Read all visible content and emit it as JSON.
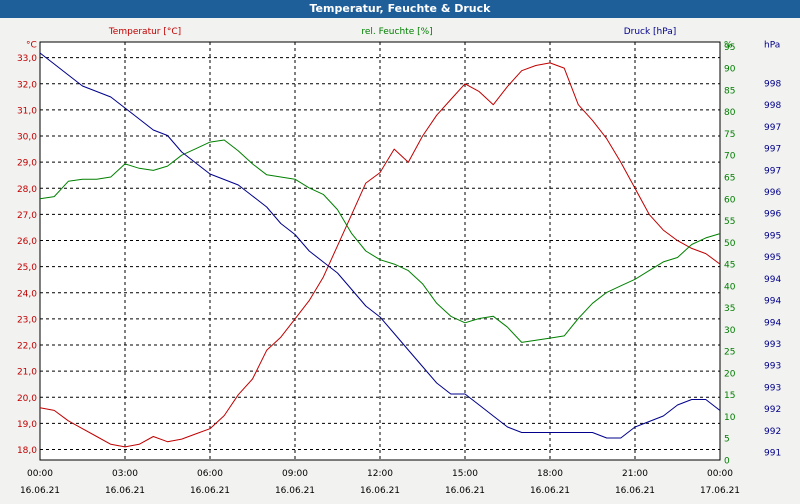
{
  "window": {
    "title": "Temperatur, Feuchte & Druck"
  },
  "chart_data": {
    "type": "line",
    "title": "Temperatur, Feuchte & Druck",
    "grid": true,
    "x": {
      "ticks": [
        "00:00",
        "03:00",
        "06:00",
        "09:00",
        "12:00",
        "15:00",
        "18:00",
        "21:00",
        "00:00"
      ],
      "dates": [
        "16.06.21",
        "16.06.21",
        "16.06.21",
        "16.06.21",
        "16.06.21",
        "16.06.21",
        "16.06.21",
        "16.06.21",
        "17.06.21"
      ],
      "range_hours": [
        0,
        24
      ]
    },
    "axes": {
      "temperature": {
        "label": "Temperatur [°C]",
        "unit": "°C",
        "color": "#c00000",
        "ylim": [
          17.6,
          33.6
        ],
        "ticks": [
          "18,0",
          "19,0",
          "20,0",
          "21,0",
          "22,0",
          "23,0",
          "24,0",
          "25,0",
          "26,0",
          "27,0",
          "28,0",
          "29,0",
          "30,0",
          "31,0",
          "32,0",
          "33,0"
        ]
      },
      "humidity": {
        "label": "rel. Feuchte [%]",
        "unit": "%",
        "color": "#008000",
        "ylim": [
          0,
          96
        ],
        "ticks": [
          "0",
          "5",
          "10",
          "15",
          "20",
          "25",
          "30",
          "35",
          "40",
          "45",
          "50",
          "55",
          "60",
          "65",
          "70",
          "75",
          "80",
          "85",
          "90",
          "95"
        ]
      },
      "pressure": {
        "label": "Druck [hPa]",
        "unit": "hPa",
        "color": "#00008b",
        "ylim": [
          991.2,
          998.8
        ],
        "ticks": [
          "991",
          "992",
          "992",
          "993",
          "993",
          "993",
          "994",
          "994",
          "994",
          "995",
          "995",
          "996",
          "996",
          "997",
          "997",
          "997",
          "998",
          "998"
        ]
      }
    },
    "series": [
      {
        "name": "Temperatur [°C]",
        "axis": "temperature",
        "color": "#c00000",
        "x": [
          0,
          0.5,
          1,
          1.5,
          2,
          2.5,
          3,
          3.5,
          4,
          4.5,
          5,
          5.5,
          6,
          6.5,
          7,
          7.5,
          8,
          8.5,
          9,
          9.5,
          10,
          10.5,
          11,
          11.5,
          12,
          12.5,
          13,
          13.5,
          14,
          14.5,
          15,
          15.5,
          16,
          16.5,
          17,
          17.5,
          18,
          18.5,
          19,
          19.5,
          20,
          20.5,
          21,
          21.5,
          22,
          22.5,
          23,
          23.5,
          24
        ],
        "values": [
          19.6,
          19.5,
          19.1,
          18.8,
          18.5,
          18.2,
          18.1,
          18.2,
          18.5,
          18.3,
          18.4,
          18.6,
          18.8,
          19.3,
          20.1,
          20.7,
          21.8,
          22.3,
          23.0,
          23.7,
          24.6,
          25.8,
          27.0,
          28.2,
          28.6,
          29.5,
          29.0,
          30.0,
          30.8,
          31.4,
          32.0,
          31.7,
          31.2,
          31.9,
          32.5,
          32.7,
          32.8,
          32.6,
          31.2,
          30.6,
          29.9,
          29.0,
          28.0,
          27.0,
          26.4,
          26.0,
          25.7,
          25.5,
          25.1
        ]
      },
      {
        "name": "rel. Feuchte [%]",
        "axis": "humidity",
        "color": "#008000",
        "x": [
          0,
          0.5,
          1,
          1.5,
          2,
          2.5,
          3,
          3.5,
          4,
          4.5,
          5,
          5.5,
          6,
          6.5,
          7,
          7.5,
          8,
          8.5,
          9,
          9.5,
          10,
          10.5,
          11,
          11.5,
          12,
          12.5,
          13,
          13.5,
          14,
          14.5,
          15,
          15.5,
          16,
          16.5,
          17,
          17.5,
          18,
          18.5,
          19,
          19.5,
          20,
          20.5,
          21,
          21.5,
          22,
          22.5,
          23,
          23.5,
          24
        ],
        "values": [
          60.0,
          60.5,
          64.0,
          64.5,
          64.5,
          65.0,
          68.0,
          67.0,
          66.5,
          67.5,
          70.0,
          71.5,
          73.0,
          73.5,
          71.0,
          68.0,
          65.5,
          65.0,
          64.5,
          62.5,
          61.0,
          57.5,
          52.0,
          48.0,
          46.0,
          45.0,
          43.5,
          40.5,
          36.0,
          33.0,
          31.5,
          32.5,
          33.0,
          30.5,
          27.0,
          27.5,
          28.0,
          28.5,
          32.5,
          36.0,
          38.5,
          40.0,
          41.5,
          43.5,
          45.5,
          46.5,
          49.5,
          51.0,
          52.0
        ]
      },
      {
        "name": "Druck [hPa]",
        "axis": "pressure",
        "color": "#00008b",
        "x": [
          0,
          0.5,
          1,
          1.5,
          2,
          2.5,
          3,
          3.5,
          4,
          4.5,
          5,
          5.5,
          6,
          6.5,
          7,
          7.5,
          8,
          8.5,
          9,
          9.5,
          10,
          10.5,
          11,
          11.5,
          12,
          12.5,
          13,
          13.5,
          14,
          14.5,
          15,
          15.5,
          16,
          16.5,
          17,
          17.5,
          18,
          18.5,
          19,
          19.5,
          20,
          20.5,
          21,
          21.5,
          22,
          22.5,
          23,
          23.5,
          24
        ],
        "values": [
          998.6,
          998.4,
          998.2,
          998.0,
          997.9,
          997.8,
          997.6,
          997.4,
          997.2,
          997.1,
          996.8,
          996.6,
          996.4,
          996.3,
          996.2,
          996.0,
          995.8,
          995.5,
          995.3,
          995.0,
          994.8,
          994.6,
          994.3,
          994.0,
          993.8,
          993.5,
          993.2,
          992.9,
          992.6,
          992.4,
          992.4,
          992.2,
          992.0,
          991.8,
          991.7,
          991.7,
          991.7,
          991.7,
          991.7,
          991.7,
          991.6,
          991.6,
          991.8,
          991.9,
          992.0,
          992.2,
          992.3,
          992.3,
          992.1
        ]
      }
    ]
  }
}
